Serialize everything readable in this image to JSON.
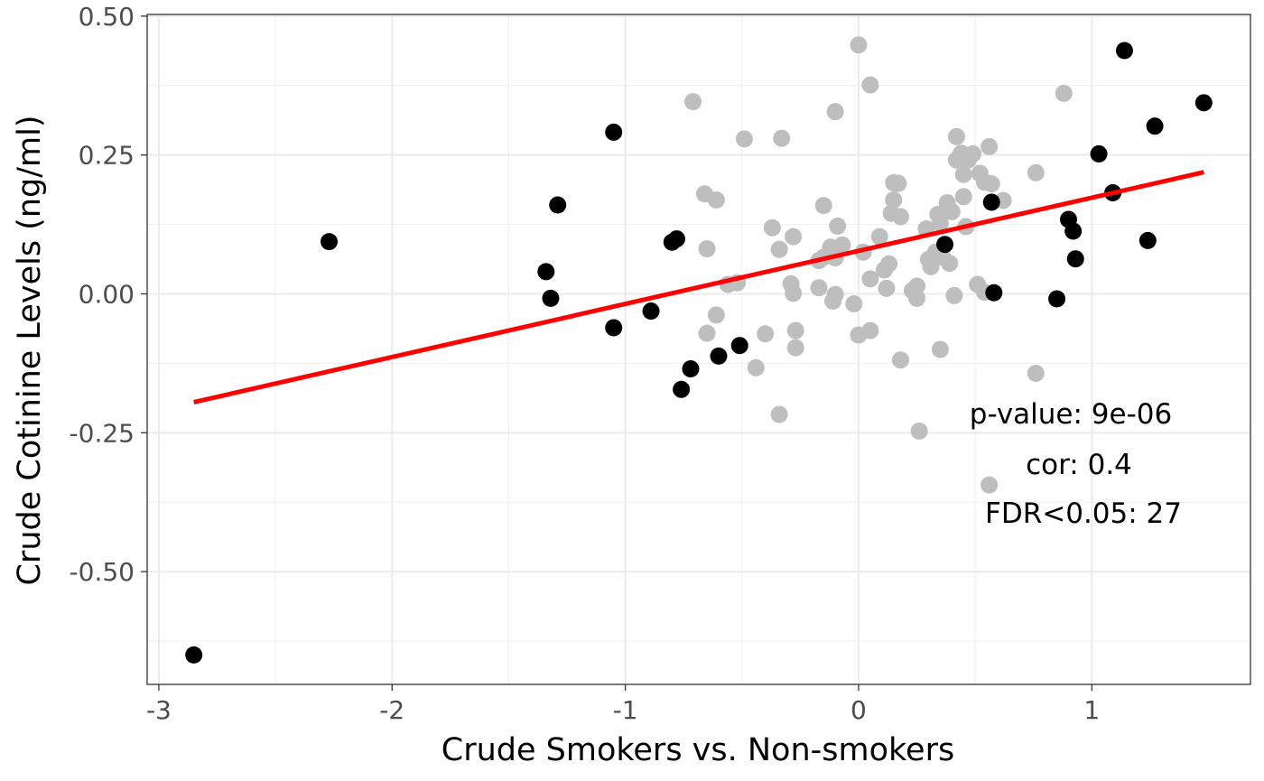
{
  "chart_data": {
    "type": "scatter",
    "title": "",
    "xlabel": "Crude Smokers vs. Non-smokers",
    "ylabel": "Crude Cotinine Levels (ng/ml)",
    "xlim": [
      -3.05,
      1.68
    ],
    "ylim": [
      -0.703,
      0.503
    ],
    "x_ticks": [
      -3,
      -2,
      -1,
      0,
      1
    ],
    "x_tick_labels": [
      "-3",
      "-2",
      "-1",
      "0",
      "1"
    ],
    "y_ticks": [
      0.5,
      0.25,
      0.0,
      -0.25,
      -0.5
    ],
    "y_tick_labels": [
      "0.50",
      "0.25",
      "0.00",
      "-0.25",
      "-0.50"
    ],
    "grid": true,
    "series": [
      {
        "role": "FDR<0.05",
        "color": "#000000",
        "points": [
          [
            -2.85,
            -0.65
          ],
          [
            -2.27,
            0.094
          ],
          [
            -1.34,
            0.04
          ],
          [
            -1.29,
            0.16
          ],
          [
            -1.32,
            -0.008
          ],
          [
            -1.05,
            0.291
          ],
          [
            -1.05,
            -0.061
          ],
          [
            -0.89,
            -0.031
          ],
          [
            -0.78,
            0.099
          ],
          [
            -0.8,
            0.093
          ],
          [
            -0.76,
            -0.172
          ],
          [
            -0.72,
            -0.135
          ],
          [
            -0.6,
            -0.112
          ],
          [
            -0.51,
            -0.093
          ],
          [
            0.37,
            0.089
          ],
          [
            0.57,
            0.165
          ],
          [
            0.58,
            0.002
          ],
          [
            0.85,
            -0.009
          ],
          [
            0.9,
            0.134
          ],
          [
            0.92,
            0.113
          ],
          [
            0.93,
            0.063
          ],
          [
            1.03,
            0.252
          ],
          [
            1.09,
            0.182
          ],
          [
            1.14,
            0.438
          ],
          [
            1.24,
            0.096
          ],
          [
            1.27,
            0.302
          ],
          [
            1.48,
            0.344
          ]
        ]
      },
      {
        "role": "other",
        "color": "#bebebe",
        "points": [
          [
            -0.71,
            0.346
          ],
          [
            -0.66,
            0.18
          ],
          [
            -0.61,
            0.169
          ],
          [
            -0.65,
            0.081
          ],
          [
            -0.65,
            -0.071
          ],
          [
            -0.61,
            -0.038
          ],
          [
            -0.52,
            0.02
          ],
          [
            -0.56,
            0.017
          ],
          [
            -0.49,
            0.279
          ],
          [
            -0.33,
            0.28
          ],
          [
            -0.37,
            0.119
          ],
          [
            -0.34,
            0.08
          ],
          [
            -0.28,
            0.103
          ],
          [
            -0.29,
            0.018
          ],
          [
            -0.28,
            0.001
          ],
          [
            -0.27,
            -0.066
          ],
          [
            -0.27,
            -0.097
          ],
          [
            -0.4,
            -0.072
          ],
          [
            -0.44,
            -0.133
          ],
          [
            -0.34,
            -0.217
          ],
          [
            -0.15,
            0.159
          ],
          [
            -0.12,
            0.084
          ],
          [
            -0.09,
            0.122
          ],
          [
            -0.07,
            0.088
          ],
          [
            -0.1,
            0.065
          ],
          [
            -0.15,
            0.066
          ],
          [
            -0.17,
            0.06
          ],
          [
            -0.17,
            0.011
          ],
          [
            -0.1,
            -0.001
          ],
          [
            -0.11,
            -0.013
          ],
          [
            -0.1,
            0.328
          ],
          [
            0.0,
            0.448
          ],
          [
            0.05,
            0.376
          ],
          [
            0.02,
            0.075
          ],
          [
            0.05,
            0.027
          ],
          [
            -0.02,
            -0.018
          ],
          [
            0.0,
            -0.074
          ],
          [
            0.05,
            -0.066
          ],
          [
            0.09,
            0.103
          ],
          [
            0.11,
            0.043
          ],
          [
            0.13,
            0.054
          ],
          [
            0.12,
            0.01
          ],
          [
            0.14,
            0.145
          ],
          [
            0.15,
            0.169
          ],
          [
            0.15,
            0.2
          ],
          [
            0.17,
            0.199
          ],
          [
            0.18,
            0.139
          ],
          [
            0.18,
            -0.119
          ],
          [
            0.23,
            0.006
          ],
          [
            0.25,
            0.014
          ],
          [
            0.25,
            -0.008
          ],
          [
            0.26,
            -0.247
          ],
          [
            0.29,
            0.117
          ],
          [
            0.31,
            0.049
          ],
          [
            0.33,
            0.075
          ],
          [
            0.34,
            0.143
          ],
          [
            0.35,
            0.127
          ],
          [
            0.38,
            0.164
          ],
          [
            0.4,
            0.148
          ],
          [
            0.39,
            0.055
          ],
          [
            0.41,
            -0.003
          ],
          [
            0.35,
            -0.1
          ],
          [
            0.42,
            0.283
          ],
          [
            0.42,
            0.241
          ],
          [
            0.44,
            0.253
          ],
          [
            0.45,
            0.215
          ],
          [
            0.47,
            0.241
          ],
          [
            0.46,
            0.121
          ],
          [
            0.49,
            0.252
          ],
          [
            0.45,
            0.175
          ],
          [
            0.52,
            0.217
          ],
          [
            0.54,
            0.201
          ],
          [
            0.57,
            0.198
          ],
          [
            0.56,
            0.265
          ],
          [
            0.51,
            0.017
          ],
          [
            0.54,
            0.003
          ],
          [
            0.56,
            -0.344
          ],
          [
            0.62,
            0.168
          ],
          [
            0.76,
            0.218
          ],
          [
            0.76,
            -0.143
          ],
          [
            0.88,
            0.361
          ],
          [
            0.36,
            0.066
          ],
          [
            0.3,
            0.062
          ]
        ]
      }
    ],
    "fit_line": {
      "color": "#ff0000",
      "from": [
        -2.85,
        -0.195
      ],
      "to": [
        1.48,
        0.219
      ]
    },
    "annotations": [
      "p-value: 9e-06",
      "cor: 0.4",
      "FDR<0.05: 27"
    ]
  }
}
